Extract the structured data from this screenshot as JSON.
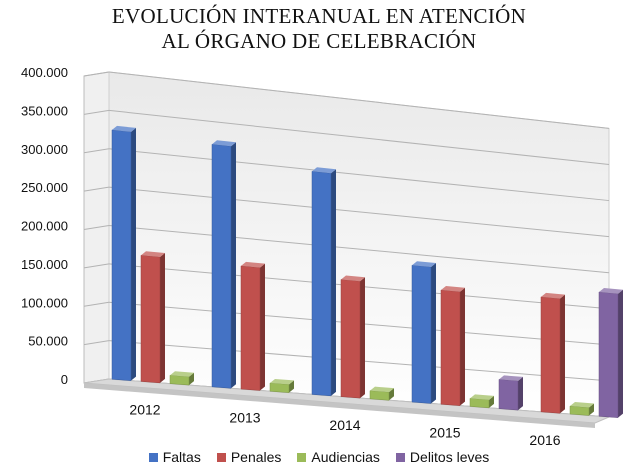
{
  "chart_data": {
    "type": "bar",
    "title_lines": [
      "EVOLUCIÓN INTERANUAL EN ATENCIÓN",
      "AL ÓRGANO DE CELEBRACIÓN"
    ],
    "categories": [
      "2012",
      "2013",
      "2014",
      "2015",
      "2016"
    ],
    "series": [
      {
        "name": "Faltas",
        "color": "#4472C4",
        "values": [
          325000,
          320000,
          298000,
          185000,
          0
        ]
      },
      {
        "name": "Penales",
        "color": "#C0504D",
        "values": [
          165000,
          163000,
          157000,
          155000,
          158000
        ]
      },
      {
        "name": "Audiencias",
        "color": "#9BBB59",
        "values": [
          11000,
          11000,
          11000,
          11000,
          11000
        ]
      },
      {
        "name": "Delitos leves",
        "color": "#8064A2",
        "values": [
          0,
          0,
          0,
          40000,
          172000
        ]
      }
    ],
    "ylim": [
      0,
      400000
    ],
    "yticks": [
      "0",
      "50.000",
      "100.000",
      "150.000",
      "200.000",
      "250.000",
      "300.000",
      "350.000",
      "400.000"
    ],
    "ytick_values": [
      0,
      50000,
      100000,
      150000,
      200000,
      250000,
      300000,
      350000,
      400000
    ],
    "grid": true,
    "legend_position": "bottom"
  }
}
